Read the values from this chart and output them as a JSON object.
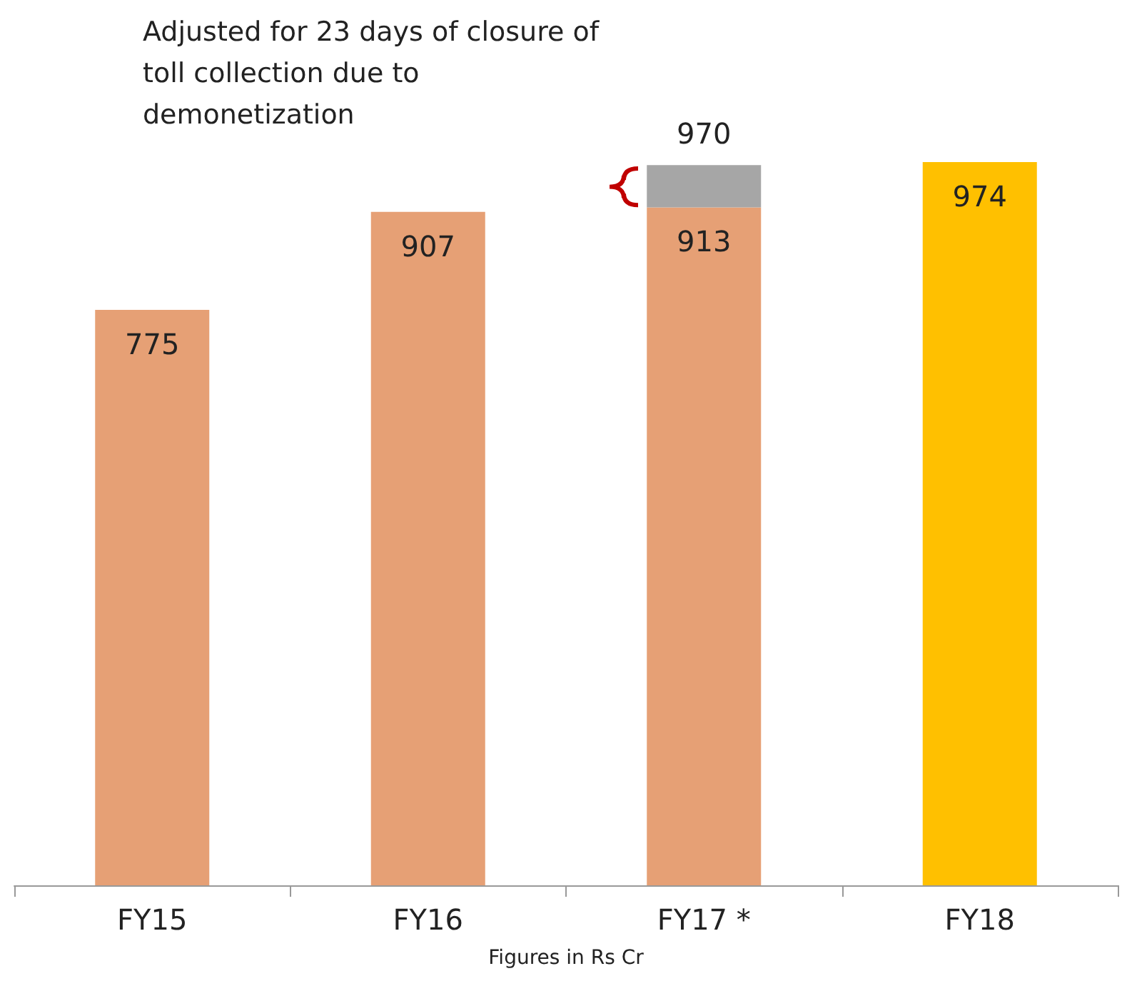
{
  "chart_data": {
    "type": "bar",
    "xlabel": "Figures in Rs Cr",
    "categories": [
      "FY15",
      "FY16",
      "FY17 *",
      "FY18"
    ],
    "stacked": true,
    "series": [
      {
        "colors": [
          "#e6a075",
          "#e6a075",
          "#e6a075",
          "#ffc000"
        ],
        "values": [
          775,
          907,
          913,
          974
        ],
        "value_labels": [
          "775",
          "907",
          "913",
          "974"
        ]
      },
      {
        "color": "#a6a6a6",
        "values": [
          null,
          null,
          57,
          null
        ]
      }
    ],
    "totals": [
      null,
      null,
      "970",
      null
    ],
    "annotations": [
      "Adjusted for 23 days of closure of toll collection due to demonetization"
    ]
  }
}
